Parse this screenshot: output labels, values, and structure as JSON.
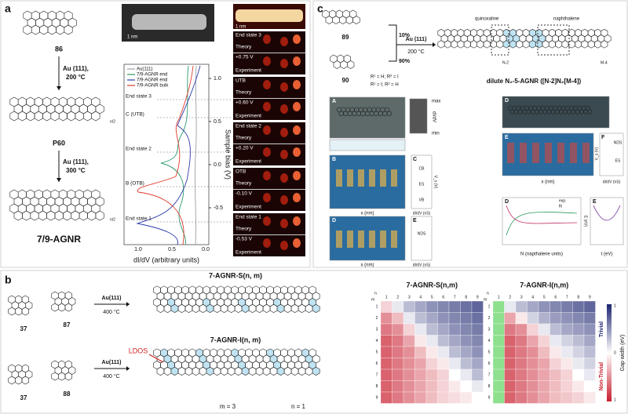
{
  "panel_a": {
    "label": "a",
    "scale_bars": [
      "1 nm",
      "1 nm"
    ],
    "compounds": [
      "86",
      "P60",
      "7/9-AGNR"
    ],
    "steps": [
      [
        "Au (111),",
        "200 °C"
      ],
      [
        "Au (111),",
        "300 °C"
      ]
    ],
    "subscripts": [
      "n/2",
      "n/2"
    ],
    "spectra": {
      "legend": [
        {
          "name": "Au(111)",
          "color": "#9aa0a8"
        },
        {
          "name": "7/9-AGNR end",
          "color": "#2c9a6a"
        },
        {
          "name": "7/9-AGNR end",
          "color": "#2b3aa8"
        },
        {
          "name": "7/9-AGNR bulk",
          "color": "#e03a2a"
        }
      ],
      "states": [
        "End state 3",
        "C (UTB)",
        "End state 2",
        "B (OTB)",
        "End state 1"
      ],
      "xlabel": "dI/dV (arbitrary units)",
      "xticks": [
        "1.0",
        "0.5",
        "0.0"
      ],
      "ylabel": "Sample bias (V)",
      "yticks": [
        "1.0",
        "0.5",
        "0.0",
        "-0.5"
      ]
    },
    "maps": [
      {
        "title": "End state 3",
        "bias": "+0.75 V"
      },
      {
        "title": "UTB",
        "bias": "+0.60 V"
      },
      {
        "title": "End state 2",
        "bias": "+0.20 V"
      },
      {
        "title": "OTB",
        "bias": "-0.10 V"
      },
      {
        "title": "End state 1",
        "bias": "-0.53 V"
      }
    ],
    "theory": "Theory",
    "experiment": "Experiment"
  },
  "panel_c": {
    "label": "c",
    "compounds": [
      "89",
      "90"
    ],
    "ratios": [
      "10%",
      "90%"
    ],
    "step": [
      "Au (111)",
      "200 °C"
    ],
    "groups": [
      "quinoxaline",
      "naphthalene"
    ],
    "units": [
      "N-2",
      "M-4"
    ],
    "substituents": [
      "R¹ = H; R² = I",
      "R¹ = I; R² = H"
    ],
    "product": "dilute N₂-5-AGNR ([N-2]N₂[M-4])",
    "subpanels": [
      "A",
      "B",
      "C",
      "D",
      "E",
      "D",
      "E",
      "F",
      "D",
      "E"
    ],
    "colorbar": [
      "max",
      "min",
      "dI/dV"
    ],
    "states": [
      "CB",
      "ES",
      "VB",
      "NDS"
    ],
    "axes": {
      "x": "x (nm)",
      "didv": "dI/dV (nS)",
      "vs": "V_s (V)",
      "n": "N (napthalene units)",
      "t": "t (eV)",
      "e": "E (eV)"
    },
    "legend": [
      "exp.",
      "fit"
    ]
  },
  "panel_b": {
    "label": "b",
    "compounds": [
      "37",
      "87",
      "37",
      "88"
    ],
    "step": [
      "Au(111)",
      "400 °C"
    ],
    "products": [
      "7-AGNR-S(n, m)",
      "7-AGNR-I(n, m)"
    ],
    "ldos": "LDOS",
    "m_label": "m = 3",
    "n_label": "n = 1",
    "heatmaps": [
      {
        "title": "7-AGNR-S(n,m)",
        "values": [
          [
            -0.2,
            0.1,
            0.3,
            0.4,
            0.5,
            0.55,
            0.6,
            0.65,
            0.7
          ],
          [
            -0.5,
            -0.3,
            0.1,
            0.3,
            0.4,
            0.5,
            0.55,
            0.6,
            0.65
          ],
          [
            -0.6,
            -0.5,
            -0.2,
            0.1,
            0.3,
            0.4,
            0.5,
            0.55,
            0.6
          ],
          [
            -0.7,
            -0.6,
            -0.4,
            -0.1,
            0.1,
            0.3,
            0.4,
            0.5,
            0.55
          ],
          [
            -0.7,
            -0.6,
            -0.5,
            -0.3,
            -0.1,
            0.1,
            0.3,
            0.4,
            0.5
          ],
          [
            -0.7,
            -0.6,
            -0.5,
            -0.4,
            -0.2,
            -0.1,
            0.1,
            0.3,
            0.4
          ],
          [
            -0.7,
            -0.6,
            -0.5,
            -0.4,
            -0.3,
            -0.2,
            0,
            0.1,
            0.3
          ],
          [
            -0.7,
            -0.6,
            -0.5,
            -0.4,
            -0.3,
            -0.2,
            -0.1,
            0,
            0.1
          ],
          [
            -0.7,
            -0.6,
            -0.5,
            -0.4,
            -0.3,
            -0.2,
            -0.15,
            -0.1,
            0
          ]
        ]
      },
      {
        "title": "7-AGNR-I(n,m)",
        "values": [
          [
            null,
            0.1,
            0.3,
            0.4,
            0.5,
            0.55,
            0.6,
            0.65,
            0.7
          ],
          [
            null,
            -0.4,
            -0.1,
            0.2,
            0.35,
            0.45,
            0.5,
            0.55,
            0.6
          ],
          [
            null,
            -0.6,
            -0.5,
            -0.2,
            0.1,
            0.3,
            0.4,
            0.45,
            0.5
          ],
          [
            null,
            -0.7,
            -0.6,
            -0.4,
            -0.2,
            0.1,
            0.2,
            0.3,
            0.4
          ],
          [
            null,
            -0.7,
            -0.6,
            -0.5,
            -0.3,
            -0.1,
            0.1,
            0.2,
            0.3
          ],
          [
            null,
            -0.7,
            -0.6,
            -0.5,
            -0.4,
            -0.2,
            -0.1,
            0.1,
            0.2
          ],
          [
            null,
            -0.7,
            -0.6,
            -0.5,
            -0.4,
            -0.3,
            -0.2,
            0,
            0.1
          ],
          [
            null,
            -0.7,
            -0.6,
            -0.5,
            -0.4,
            -0.3,
            -0.2,
            -0.1,
            0
          ],
          [
            null,
            -0.7,
            -0.6,
            -0.5,
            -0.4,
            -0.3,
            -0.25,
            -0.2,
            -0.1
          ]
        ]
      }
    ],
    "n_ticks": [
      1,
      2,
      3,
      4,
      5,
      6,
      7,
      8,
      9
    ],
    "axis_n": "n",
    "axis_m": "m",
    "colorbar": {
      "top": "Trivial",
      "bottom": "Non-Trivial",
      "label": "Gap width (eV)",
      "ticks": [
        "1",
        "0",
        "1"
      ]
    }
  }
}
